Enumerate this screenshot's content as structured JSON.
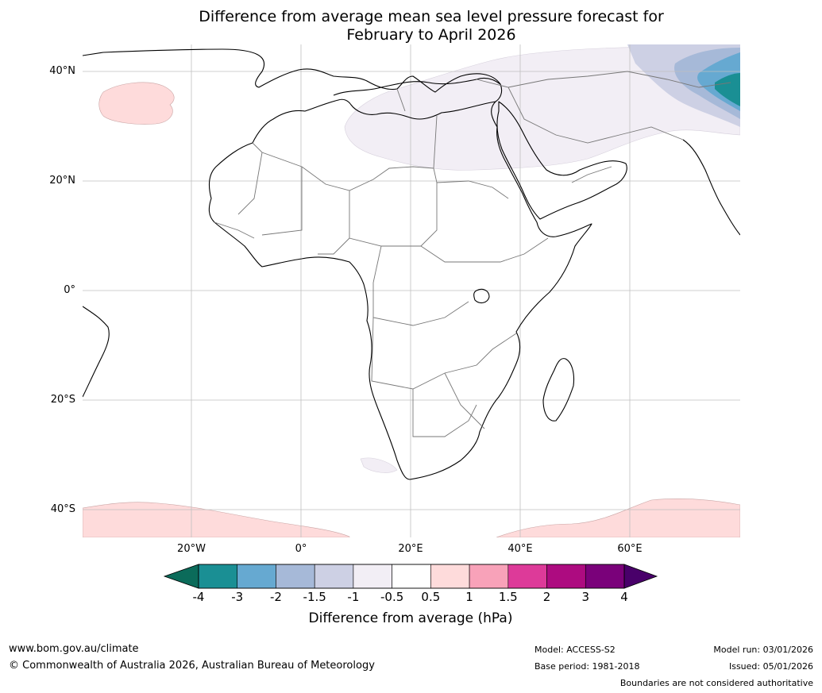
{
  "title_line1": "Difference from average mean sea level pressure forecast for",
  "title_line2": "February to April 2026",
  "lat_labels": [
    "40°N",
    "20°N",
    "0°",
    "20°S",
    "40°S"
  ],
  "lon_labels": [
    "20°W",
    "0°",
    "20°E",
    "40°E",
    "60°E"
  ],
  "colorbar": {
    "ticks": [
      "-4",
      "-3",
      "-2",
      "-1.5",
      "-1",
      "-0.5",
      "0.5",
      "1",
      "1.5",
      "2",
      "3",
      "4"
    ],
    "colors": [
      "#1a8f94",
      "#66a9d1",
      "#a6b9d8",
      "#cdd0e4",
      "#f2eef5",
      "#ffffff",
      "#fedbdb",
      "#f8a2b9",
      "#dd3a99",
      "#ad0b80",
      "#7a017a"
    ],
    "under_color": "#0b6b5a",
    "over_color": "#49006a",
    "label": "Difference from average (hPa)"
  },
  "footer": {
    "website": "www.bom.gov.au/climate",
    "copyright": "© Commonwealth of Australia 2026, Australian Bureau of Meteorology",
    "model": "Model: ACCESS-S2",
    "base_period": "Base period: 1981-2018",
    "model_run": "Model run: 03/01/2026",
    "issued": "Issued: 05/01/2026",
    "disclaimer": "Boundaries are not considered authoritative"
  }
}
